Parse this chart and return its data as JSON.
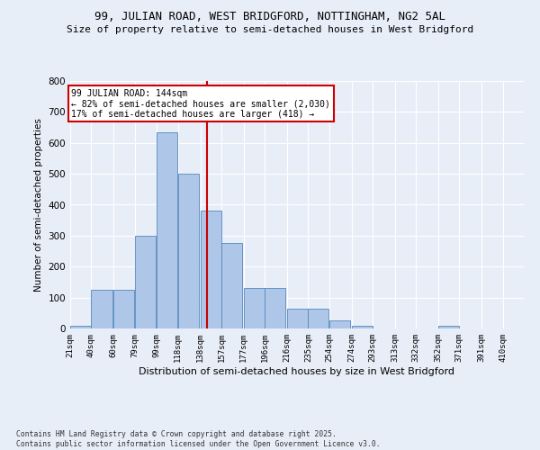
{
  "title1": "99, JULIAN ROAD, WEST BRIDGFORD, NOTTINGHAM, NG2 5AL",
  "title2": "Size of property relative to semi-detached houses in West Bridgford",
  "xlabel": "Distribution of semi-detached houses by size in West Bridgford",
  "ylabel": "Number of semi-detached properties",
  "footer": "Contains HM Land Registry data © Crown copyright and database right 2025.\nContains public sector information licensed under the Open Government Licence v3.0.",
  "bin_labels": [
    "21sqm",
    "40sqm",
    "60sqm",
    "79sqm",
    "99sqm",
    "118sqm",
    "138sqm",
    "157sqm",
    "177sqm",
    "196sqm",
    "216sqm",
    "235sqm",
    "254sqm",
    "274sqm",
    "293sqm",
    "313sqm",
    "332sqm",
    "352sqm",
    "371sqm",
    "391sqm",
    "410sqm"
  ],
  "bin_edges": [
    21,
    40,
    60,
    79,
    99,
    118,
    138,
    157,
    177,
    196,
    216,
    235,
    254,
    274,
    293,
    313,
    332,
    352,
    371,
    391,
    410
  ],
  "bar_heights": [
    10,
    125,
    125,
    300,
    635,
    500,
    380,
    275,
    130,
    130,
    65,
    65,
    25,
    10,
    0,
    0,
    0,
    10,
    0,
    0,
    0
  ],
  "bar_color": "#aec6e8",
  "bar_edge_color": "#5588bb",
  "property_size": 144,
  "property_line_color": "#cc0000",
  "annotation_text": "99 JULIAN ROAD: 144sqm\n← 82% of semi-detached houses are smaller (2,030)\n17% of semi-detached houses are larger (418) →",
  "annotation_box_color": "#cc0000",
  "ylim": [
    0,
    800
  ],
  "yticks": [
    0,
    100,
    200,
    300,
    400,
    500,
    600,
    700,
    800
  ],
  "background_color": "#e8eef8",
  "grid_color": "#ffffff",
  "title1_fontsize": 9,
  "title2_fontsize": 8
}
